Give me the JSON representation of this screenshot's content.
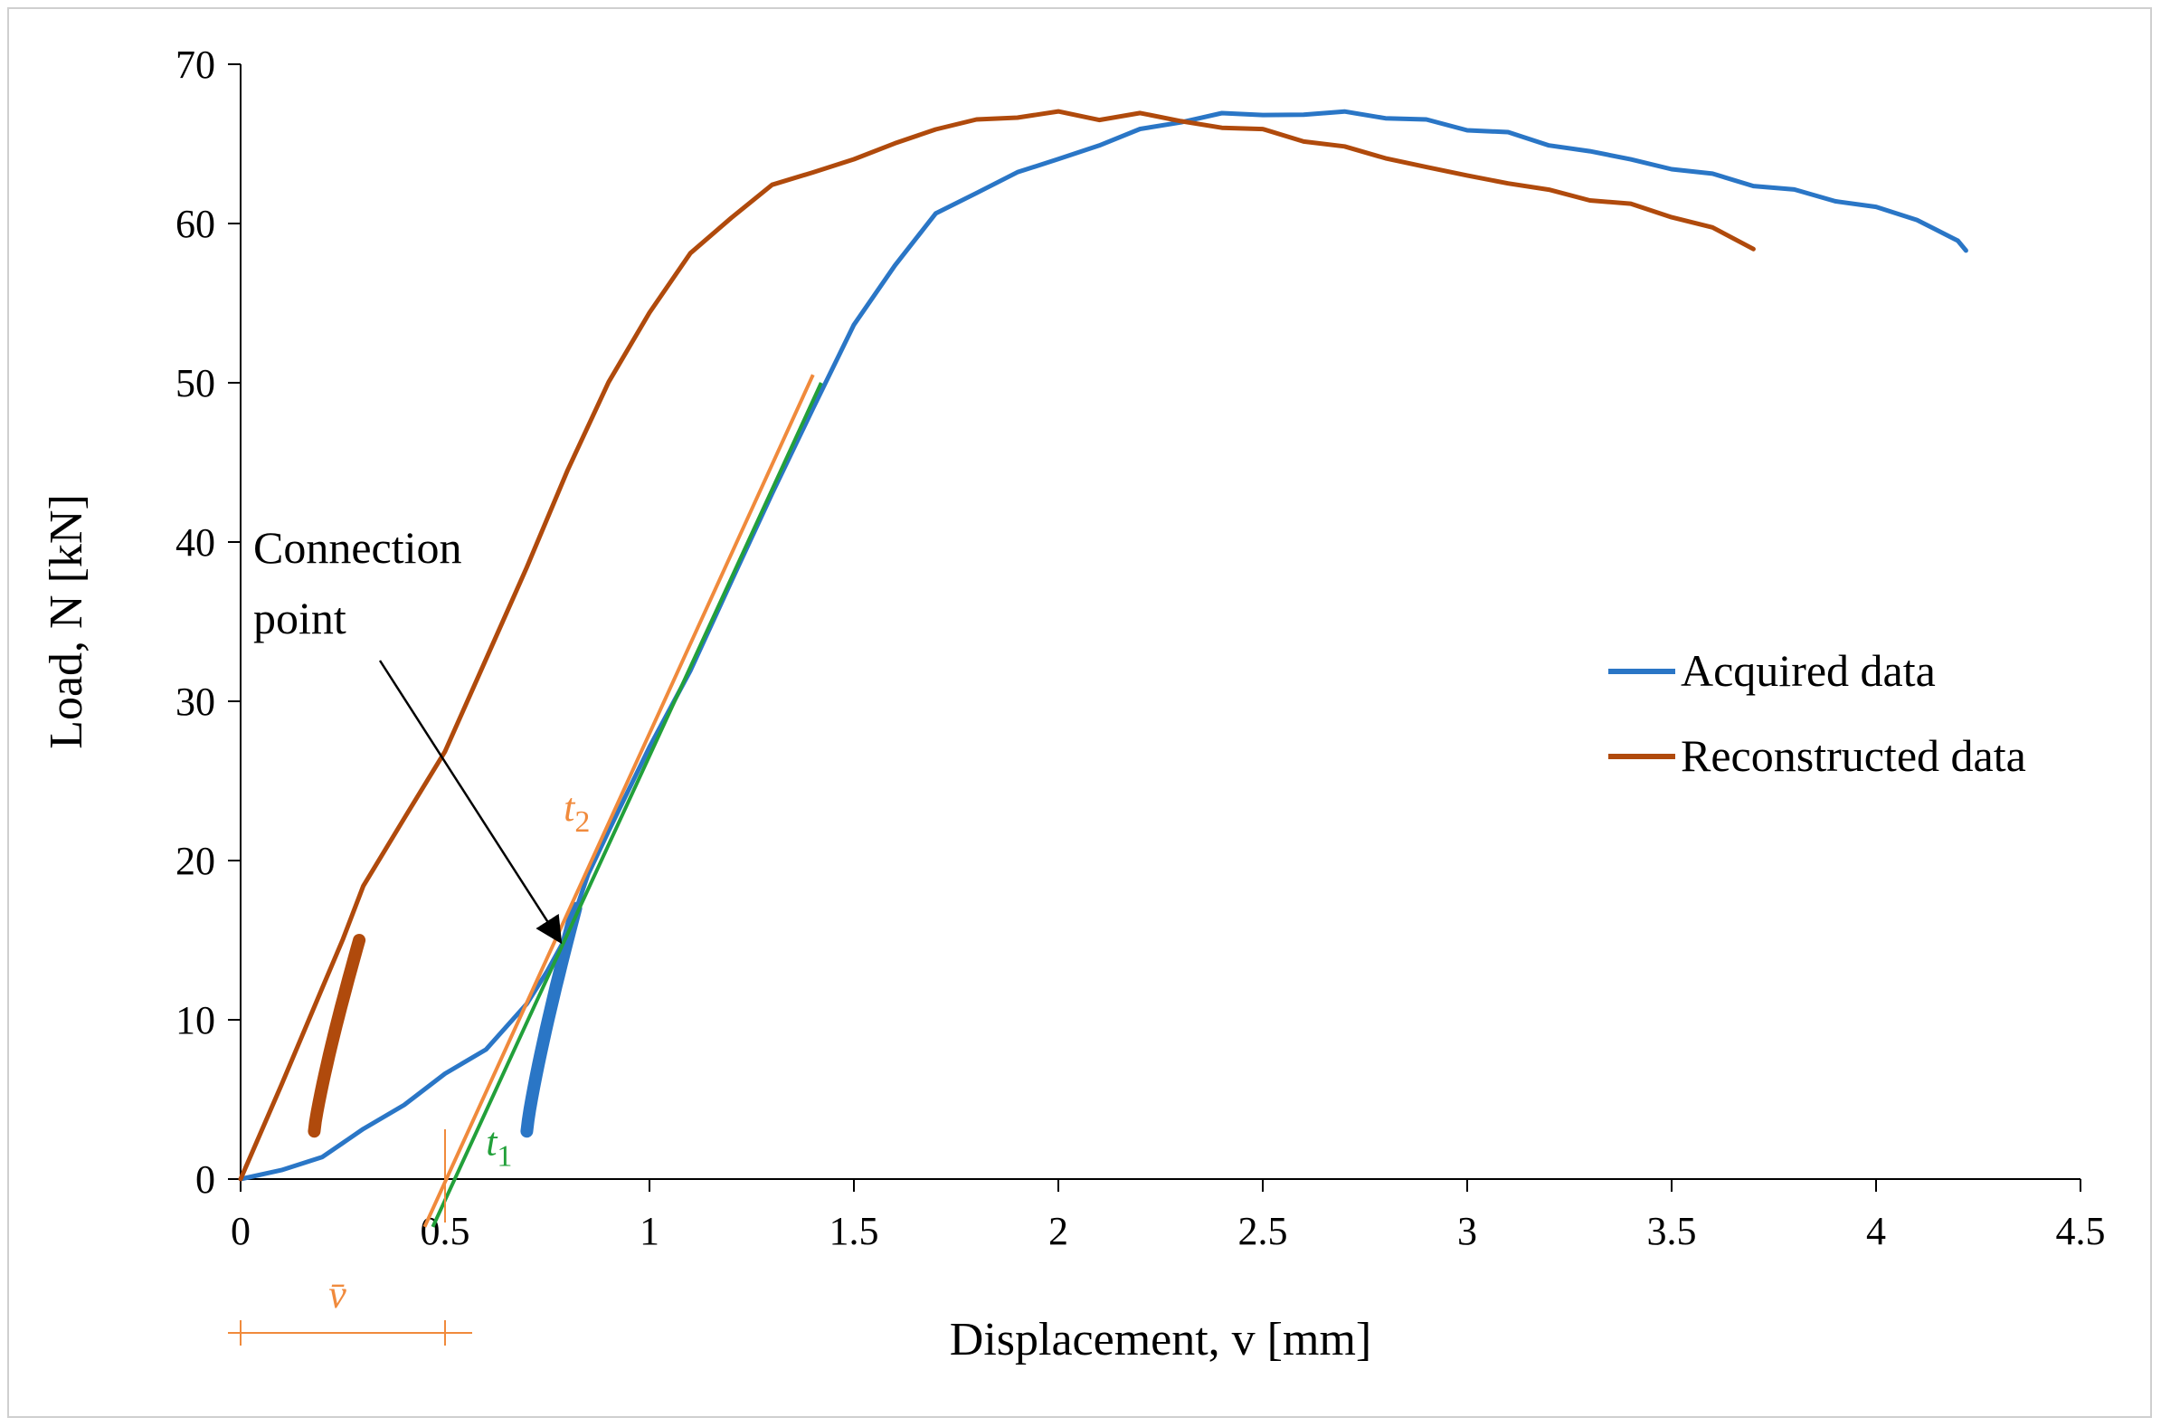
{
  "chart_data": {
    "type": "line",
    "title": "",
    "xlabel": "Displacement, v   [mm]",
    "ylabel": "Load, N   [kN]",
    "xlim": [
      0,
      4.5
    ],
    "ylim": [
      0,
      70
    ],
    "x_ticks": [
      "0",
      "0.5",
      "1",
      "1.5",
      "2",
      "2.5",
      "3",
      "3.5",
      "4",
      "4.5"
    ],
    "y_ticks": [
      "0",
      "10",
      "20",
      "30",
      "40",
      "50",
      "60",
      "70"
    ],
    "grid": false,
    "legend_position": "center-right",
    "series": [
      {
        "name": "Acquired data",
        "color": "#2a76c6",
        "x": [
          0,
          0.1,
          0.2,
          0.3,
          0.4,
          0.5,
          0.6,
          0.7,
          0.75,
          0.8,
          0.85,
          0.9,
          1.0,
          1.1,
          1.2,
          1.3,
          1.4,
          1.5,
          1.6,
          1.7,
          1.8,
          1.9,
          2.0,
          2.1,
          2.2,
          2.3,
          2.4,
          2.5,
          2.6,
          2.7,
          2.8,
          2.9,
          3.0,
          3.1,
          3.2,
          3.3,
          3.4,
          3.5,
          3.6,
          3.7,
          3.8,
          3.9,
          4.0,
          4.1,
          4.2,
          4.22
        ],
        "y": [
          0,
          0.5,
          1.5,
          3,
          4.8,
          6.5,
          8.2,
          11,
          13,
          15.5,
          19,
          22,
          27,
          32,
          37.5,
          43,
          48.5,
          53.5,
          57.5,
          60.5,
          62,
          63.2,
          64,
          65,
          65.8,
          66.5,
          66.8,
          66.9,
          66.8,
          67,
          66.7,
          66.4,
          66.0,
          65.6,
          65.0,
          64.5,
          64.0,
          63.5,
          63.0,
          62.5,
          62.0,
          61.5,
          61.0,
          60.2,
          59.0,
          58.3
        ]
      },
      {
        "name": "Reconstructed data",
        "color": "#b04a0c",
        "x": [
          0,
          0.1,
          0.2,
          0.25,
          0.3,
          0.4,
          0.5,
          0.6,
          0.7,
          0.8,
          0.9,
          1.0,
          1.1,
          1.2,
          1.3,
          1.4,
          1.5,
          1.6,
          1.7,
          1.8,
          1.9,
          2.0,
          2.1,
          2.2,
          2.3,
          2.4,
          2.5,
          2.6,
          2.7,
          2.8,
          2.9,
          3.0,
          3.1,
          3.2,
          3.3,
          3.4,
          3.5,
          3.6,
          3.7
        ],
        "y": [
          0,
          6,
          12,
          15,
          18.5,
          22.5,
          27,
          32.5,
          38.5,
          44.5,
          50,
          54.5,
          58,
          60.5,
          62.3,
          63.3,
          64,
          65,
          66,
          66.4,
          66.8,
          66.9,
          66.6,
          66.9,
          66.4,
          66.1,
          65.8,
          65.3,
          64.7,
          64.2,
          63.5,
          63.0,
          62.6,
          62.0,
          61.6,
          61.1,
          60.5,
          59.7,
          58.4
        ]
      }
    ],
    "unloading_loops": [
      {
        "series": "Acquired data",
        "x_range": [
          0.7,
          0.82
        ],
        "y_range": [
          3,
          17
        ]
      },
      {
        "series": "Reconstructed data",
        "x_range": [
          0.18,
          0.29
        ],
        "y_range": [
          3,
          15
        ]
      }
    ],
    "tangent_lines": [
      {
        "label": "t",
        "subscript": "1",
        "color": "#22a03a",
        "x": [
          0.47,
          1.42
        ],
        "y": [
          -3,
          50
        ]
      },
      {
        "label": "t",
        "subscript": "2",
        "color": "#f08a3c",
        "x": [
          0.45,
          1.4
        ],
        "y": [
          -3,
          50.5
        ]
      }
    ],
    "offset_marker": {
      "label": "v̄",
      "color": "#f08a3c",
      "value": 0.5
    },
    "annotation": {
      "lines": [
        "Connection",
        "point"
      ],
      "target": [
        0.78,
        15
      ]
    }
  }
}
